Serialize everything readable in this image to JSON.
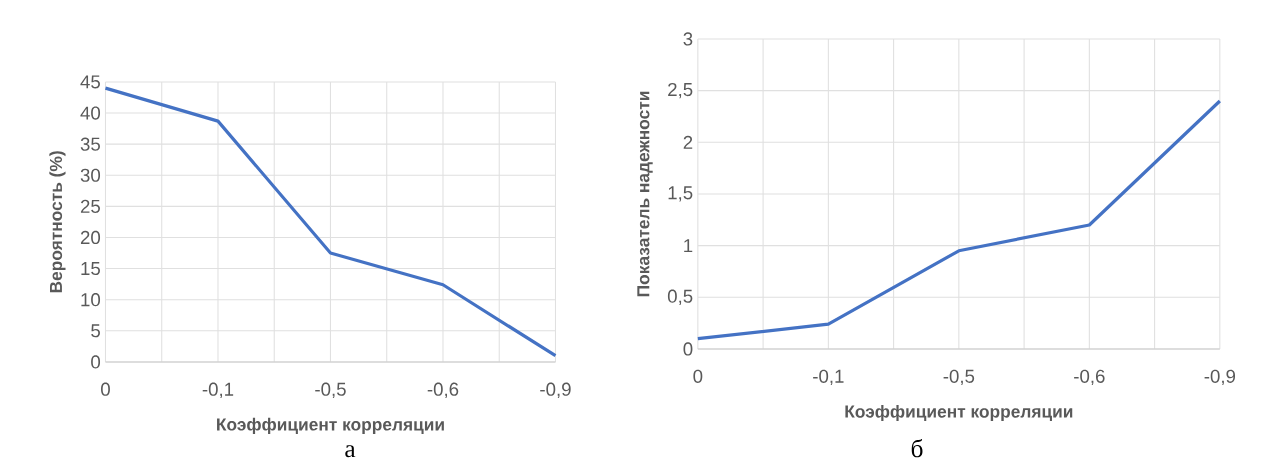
{
  "chart_data": [
    {
      "type": "line",
      "xlabel": "Коэффициент корреляции",
      "ylabel": "Вероятность (%)",
      "annotations": [
        "а"
      ],
      "categories": [
        "0",
        "-0,1",
        "-0,5",
        "-0,6",
        "-0,9"
      ],
      "series": [
        {
          "color": "#4472c4",
          "values": [
            44,
            38.7,
            17.5,
            12.4,
            1
          ]
        }
      ],
      "ylim": [
        0,
        45
      ],
      "yticks": [
        0,
        5,
        10,
        15,
        20,
        25,
        30,
        35,
        40,
        45
      ],
      "grid": true
    },
    {
      "type": "line",
      "xlabel": "Коэффициент корреляции",
      "ylabel": "Показатель надежности",
      "annotations": [
        "б"
      ],
      "categories": [
        "0",
        "-0,1",
        "-0,5",
        "-0,6",
        "-0,9"
      ],
      "series": [
        {
          "color": "#4472c4",
          "values": [
            0.1,
            0.24,
            0.95,
            1.2,
            2.4
          ]
        }
      ],
      "ylim": [
        0,
        3
      ],
      "yticks": [
        0,
        {
          "value": 0.5,
          "label": "0,5"
        },
        1,
        {
          "value": 1.5,
          "label": "1,5"
        },
        2,
        {
          "value": 2.5,
          "label": "2,5"
        },
        3
      ],
      "grid": true
    }
  ]
}
